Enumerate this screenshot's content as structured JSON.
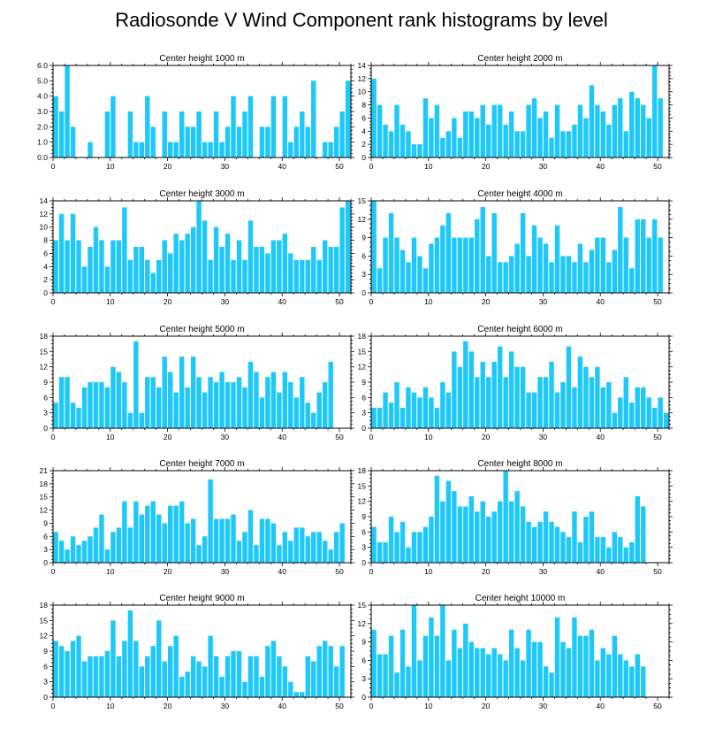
{
  "title": "Radiosonde V Wind Component rank histograms by level",
  "bar_color": "#1ec8f8",
  "chart_data": [
    {
      "type": "bar",
      "title": "Center height 1000 m",
      "x_start": 0,
      "xlim": [
        0,
        52
      ],
      "x_ticks": [
        0,
        10,
        20,
        30,
        40,
        50
      ],
      "ylim": [
        0,
        6
      ],
      "y_ticks": [
        "0.0",
        "1.0",
        "2.0",
        "3.0",
        "4.0",
        "5.0",
        "6.0"
      ],
      "values": [
        4,
        3,
        6,
        2,
        0,
        0,
        1,
        0,
        0,
        3,
        4,
        0,
        0,
        3,
        1,
        1,
        4,
        2,
        0,
        3,
        1,
        1,
        3,
        2,
        2,
        3,
        1,
        1,
        3,
        1,
        2,
        4,
        2,
        3,
        4,
        0,
        2,
        2,
        4,
        0,
        4,
        1,
        2,
        3,
        2,
        5,
        0,
        1,
        1,
        2,
        3,
        5
      ]
    },
    {
      "type": "bar",
      "title": "Center height 2000 m",
      "x_start": 0,
      "xlim": [
        0,
        52
      ],
      "x_ticks": [
        0,
        10,
        20,
        30,
        40,
        50
      ],
      "ylim": [
        0,
        14
      ],
      "y_ticks": [
        "0",
        "2",
        "4",
        "6",
        "8",
        "10",
        "12",
        "14"
      ],
      "values": [
        12,
        8,
        5,
        4,
        8,
        5,
        4,
        2,
        2,
        9,
        6,
        8,
        3,
        4,
        6,
        3,
        7,
        7,
        6,
        8,
        5,
        8,
        8,
        5,
        7,
        4,
        4,
        8,
        9,
        6,
        7,
        3,
        8,
        4,
        4,
        5,
        8,
        6,
        11,
        8,
        7,
        5,
        8,
        9,
        4,
        10,
        9,
        8,
        6,
        14,
        9
      ]
    },
    {
      "type": "bar",
      "title": "Center height 3000 m",
      "x_start": 0,
      "xlim": [
        0,
        52
      ],
      "x_ticks": [
        0,
        10,
        20,
        30,
        40,
        50
      ],
      "ylim": [
        0,
        14
      ],
      "y_ticks": [
        "0",
        "2",
        "4",
        "6",
        "8",
        "10",
        "12",
        "14"
      ],
      "values": [
        8,
        12,
        8,
        12,
        8,
        4,
        7,
        10,
        8,
        4,
        8,
        8,
        13,
        5,
        7,
        7,
        5,
        3,
        5,
        8,
        6,
        9,
        8,
        9,
        10,
        14,
        11,
        5,
        10,
        7,
        9,
        5,
        8,
        5,
        11,
        7,
        7,
        6,
        8,
        8,
        9,
        6,
        5,
        5,
        5,
        7,
        5,
        8,
        7,
        7,
        13,
        14
      ]
    },
    {
      "type": "bar",
      "title": "Center height 4000 m",
      "x_start": 0,
      "xlim": [
        0,
        52
      ],
      "x_ticks": [
        0,
        10,
        20,
        30,
        40,
        50
      ],
      "ylim": [
        0,
        15
      ],
      "y_ticks": [
        "0",
        "3",
        "6",
        "9",
        "12",
        "15"
      ],
      "values": [
        15,
        4,
        9,
        13,
        9,
        7,
        5,
        9,
        6,
        4,
        8,
        9,
        11,
        13,
        9,
        9,
        9,
        9,
        12,
        14,
        6,
        13,
        5,
        5,
        6,
        8,
        13,
        6,
        11,
        9,
        8,
        5,
        11,
        6,
        6,
        5,
        8,
        5,
        7,
        9,
        9,
        5,
        7,
        14,
        9,
        4,
        12,
        12,
        9,
        12,
        9
      ]
    },
    {
      "type": "bar",
      "title": "Center height 5000 m",
      "x_start": 0,
      "xlim": [
        0,
        52
      ],
      "x_ticks": [
        0,
        10,
        20,
        30,
        40,
        50
      ],
      "ylim": [
        0,
        18
      ],
      "y_ticks": [
        "0",
        "3",
        "6",
        "9",
        "12",
        "15",
        "18"
      ],
      "values": [
        5,
        10,
        10,
        5,
        4,
        8,
        9,
        9,
        9,
        8,
        12,
        11,
        9,
        3,
        17,
        3,
        10,
        10,
        8,
        14,
        11,
        7,
        14,
        8,
        14,
        10,
        7,
        10,
        9,
        11,
        9,
        9,
        10,
        8,
        13,
        11,
        6,
        10,
        11,
        7,
        11,
        9,
        6,
        10,
        5,
        3,
        7,
        9,
        13
      ]
    },
    {
      "type": "bar",
      "title": "Center height 6000 m",
      "x_start": 0,
      "xlim": [
        0,
        52
      ],
      "x_ticks": [
        0,
        10,
        20,
        30,
        40,
        50
      ],
      "ylim": [
        0,
        18
      ],
      "y_ticks": [
        "0",
        "3",
        "6",
        "9",
        "12",
        "15",
        "18"
      ],
      "values": [
        4,
        4,
        7,
        5,
        9,
        4,
        8,
        7,
        6,
        8,
        6,
        4,
        9,
        7,
        15,
        12,
        17,
        15,
        10,
        13,
        10,
        13,
        16,
        10,
        15,
        12,
        12,
        7,
        7,
        10,
        10,
        13,
        7,
        9,
        16,
        8,
        14,
        12,
        10,
        12,
        8,
        9,
        3,
        6,
        10,
        5,
        8,
        8,
        6,
        4,
        6,
        3
      ]
    },
    {
      "type": "bar",
      "title": "Center height 7000 m",
      "x_start": 0,
      "xlim": [
        0,
        52
      ],
      "x_ticks": [
        0,
        10,
        20,
        30,
        40,
        50
      ],
      "ylim": [
        0,
        21
      ],
      "y_ticks": [
        "0",
        "3",
        "6",
        "9",
        "12",
        "15",
        "18",
        "21"
      ],
      "values": [
        7,
        5,
        3,
        6,
        4,
        5,
        6,
        8,
        11,
        3,
        7,
        8,
        14,
        8,
        14,
        11,
        13,
        14,
        11,
        9,
        13,
        13,
        14,
        9,
        10,
        4,
        6,
        19,
        10,
        10,
        10,
        11,
        5,
        7,
        12,
        4,
        10,
        10,
        9,
        4,
        7,
        5,
        8,
        8,
        6,
        7,
        7,
        5,
        3,
        7,
        9
      ]
    },
    {
      "type": "bar",
      "title": "Center height 8000 m",
      "x_start": 0,
      "xlim": [
        0,
        52
      ],
      "x_ticks": [
        0,
        10,
        20,
        30,
        40,
        50
      ],
      "ylim": [
        0,
        18
      ],
      "y_ticks": [
        "0",
        "3",
        "6",
        "9",
        "12",
        "15",
        "18"
      ],
      "values": [
        7,
        4,
        4,
        9,
        6,
        8,
        3,
        6,
        6,
        7,
        9,
        17,
        12,
        16,
        14,
        11,
        11,
        13,
        10,
        12,
        9,
        10,
        12,
        18,
        12,
        14,
        11,
        8,
        7,
        8,
        10,
        8,
        7,
        6,
        5,
        10,
        4,
        9,
        10,
        5,
        5,
        3,
        6,
        5,
        3,
        4,
        13,
        11
      ]
    },
    {
      "type": "bar",
      "title": "Center height 9000 m",
      "x_start": 0,
      "xlim": [
        0,
        52
      ],
      "x_ticks": [
        0,
        10,
        20,
        30,
        40,
        50
      ],
      "ylim": [
        0,
        18
      ],
      "y_ticks": [
        "0",
        "3",
        "6",
        "9",
        "12",
        "15",
        "18"
      ],
      "values": [
        11,
        10,
        9,
        11,
        12,
        7,
        8,
        8,
        8,
        9,
        15,
        8,
        11,
        17,
        11,
        6,
        8,
        10,
        15,
        7,
        10,
        12,
        4,
        5,
        8,
        7,
        6,
        12,
        8,
        4,
        8,
        9,
        9,
        3,
        8,
        8,
        4,
        10,
        11,
        8,
        6,
        3,
        1,
        1,
        8,
        7,
        10,
        11,
        10,
        6,
        10
      ]
    },
    {
      "type": "bar",
      "title": "Center height 10000 m",
      "x_start": 0,
      "xlim": [
        0,
        52
      ],
      "x_ticks": [
        0,
        10,
        20,
        30,
        40,
        50
      ],
      "ylim": [
        0,
        15
      ],
      "y_ticks": [
        "0",
        "3",
        "6",
        "9",
        "12",
        "15"
      ],
      "values": [
        11,
        7,
        7,
        10,
        4,
        11,
        5,
        15,
        6,
        10,
        13,
        10,
        15,
        6,
        11,
        8,
        12,
        9,
        8,
        8,
        7,
        8,
        7,
        6,
        11,
        8,
        6,
        11,
        9,
        9,
        5,
        4,
        13,
        9,
        8,
        13,
        10,
        10,
        11,
        6,
        8,
        7,
        10,
        7,
        6,
        5,
        7,
        5
      ]
    }
  ]
}
